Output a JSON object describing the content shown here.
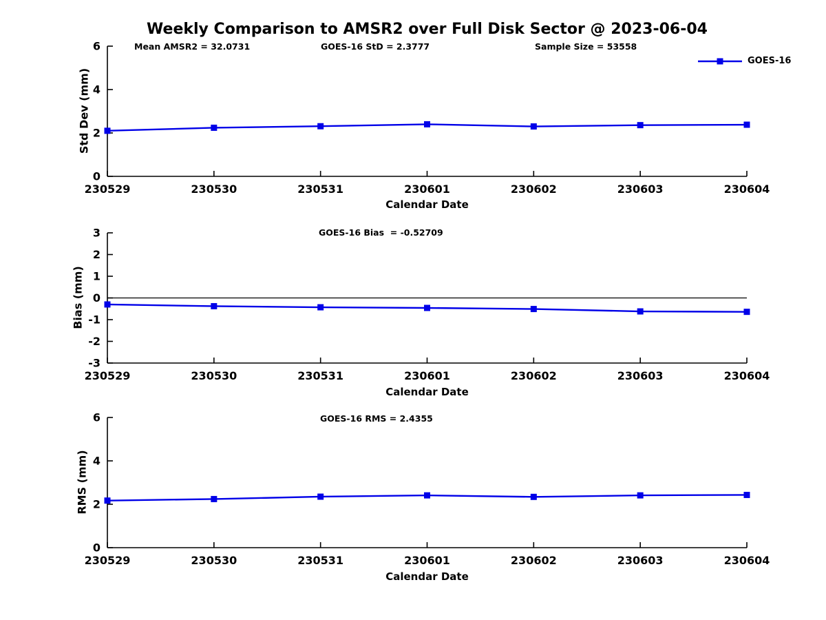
{
  "figure": {
    "title": "Weekly Comparison to AMSR2 over Full Disk Sector @ 2023-06-04"
  },
  "legend": {
    "label": "GOES-16"
  },
  "colors": {
    "series": "#0000e8",
    "axis": "#000000",
    "text": "#000000",
    "background": "#ffffff"
  },
  "chart_data": [
    {
      "type": "line",
      "ylabel": "Std Dev (mm)",
      "xlabel": "Calendar Date",
      "categories": [
        "230529",
        "230530",
        "230531",
        "230601",
        "230602",
        "230603",
        "230604"
      ],
      "series": [
        {
          "name": "GOES-16",
          "values": [
            2.1,
            2.24,
            2.31,
            2.4,
            2.3,
            2.36,
            2.38
          ]
        }
      ],
      "ylim": [
        0,
        6
      ],
      "yticks": [
        0,
        2,
        4,
        6
      ],
      "annotations": [
        "Mean AMSR2 = 32.0731",
        "GOES-16 StD = 2.3777",
        "Sample Size = 53558"
      ],
      "zero_line": false,
      "legend_position": "top-right",
      "grid": false
    },
    {
      "type": "line",
      "ylabel": "Bias (mm)",
      "xlabel": "Calendar Date",
      "categories": [
        "230529",
        "230530",
        "230531",
        "230601",
        "230602",
        "230603",
        "230604"
      ],
      "series": [
        {
          "name": "GOES-16",
          "values": [
            -0.3,
            -0.38,
            -0.43,
            -0.46,
            -0.51,
            -0.62,
            -0.64
          ]
        }
      ],
      "ylim": [
        -3,
        3
      ],
      "yticks": [
        3,
        2,
        1,
        0,
        -1,
        -2,
        -3
      ],
      "annotations": [
        "GOES-16 Bias  = -0.52709"
      ],
      "zero_line": true,
      "legend_position": "none",
      "grid": false
    },
    {
      "type": "line",
      "ylabel": "RMS (mm)",
      "xlabel": "Calendar Date",
      "categories": [
        "230529",
        "230530",
        "230531",
        "230601",
        "230602",
        "230603",
        "230604"
      ],
      "series": [
        {
          "name": "GOES-16",
          "values": [
            2.17,
            2.24,
            2.35,
            2.41,
            2.34,
            2.41,
            2.43
          ]
        }
      ],
      "ylim": [
        0,
        6
      ],
      "yticks": [
        0,
        2,
        4,
        6
      ],
      "annotations": [
        "GOES-16 RMS = 2.4355"
      ],
      "zero_line": false,
      "legend_position": "none",
      "grid": false
    }
  ]
}
